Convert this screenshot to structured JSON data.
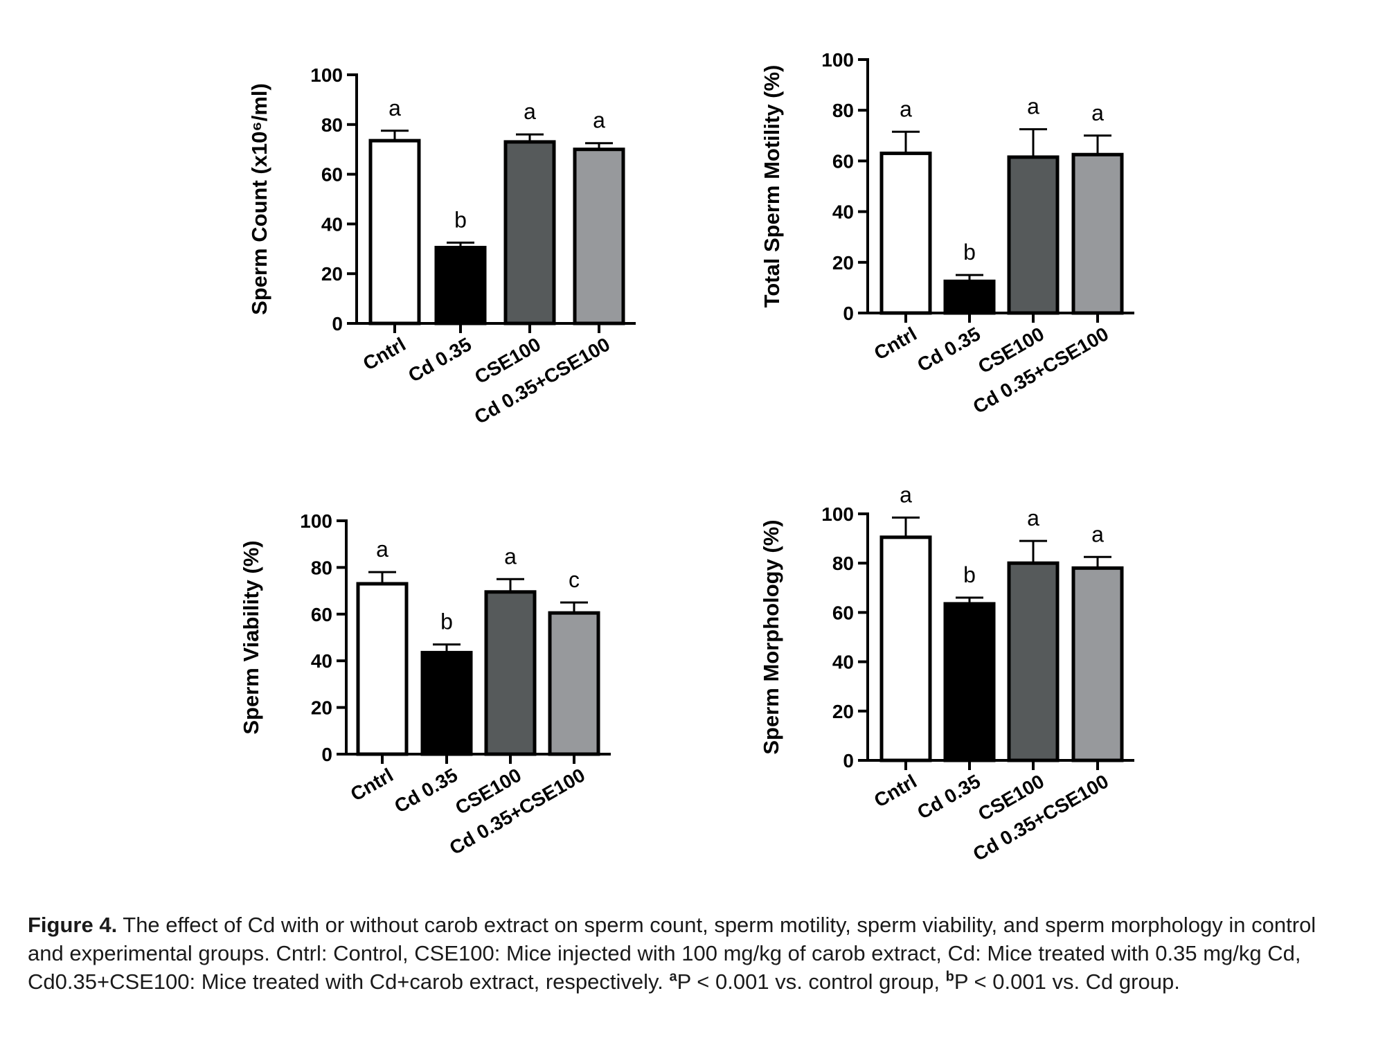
{
  "chart_data": [
    {
      "type": "bar",
      "ylabel": "Sperm Count (x10⁶/ml)",
      "categories": [
        "Cntrl",
        "Cd 0.35",
        "CSE100",
        "Cd 0.35+CSE100"
      ],
      "values": [
        73.5,
        30.5,
        73,
        70
      ],
      "errors": [
        4,
        2,
        3,
        2.5
      ],
      "significance": [
        "a",
        "b",
        "a",
        "a"
      ],
      "colors": [
        "#ffffff",
        "#000000",
        "#565a5b",
        "#97999c"
      ],
      "ylim": [
        0,
        100
      ],
      "yticks": [
        0,
        20,
        40,
        60,
        80,
        100
      ]
    },
    {
      "type": "bar",
      "ylabel": "Total Sperm Motility (%)",
      "categories": [
        "Cntrl",
        "Cd 0.35",
        "CSE100",
        "Cd 0.35+CSE100"
      ],
      "values": [
        63,
        12.5,
        61.5,
        62.5
      ],
      "errors": [
        8.5,
        2.5,
        11,
        7.5
      ],
      "significance": [
        "a",
        "b",
        "a",
        "a"
      ],
      "colors": [
        "#ffffff",
        "#000000",
        "#565a5b",
        "#97999c"
      ],
      "ylim": [
        0,
        100
      ],
      "yticks": [
        0,
        20,
        40,
        60,
        80,
        100
      ]
    },
    {
      "type": "bar",
      "ylabel": "Sperm Viability (%)",
      "categories": [
        "Cntrl",
        "Cd 0.35",
        "CSE100",
        "Cd 0.35+CSE100"
      ],
      "values": [
        73,
        43.5,
        69.5,
        60.5
      ],
      "errors": [
        5,
        3.5,
        5.5,
        4.5
      ],
      "significance": [
        "a",
        "b",
        "a",
        "c"
      ],
      "colors": [
        "#ffffff",
        "#000000",
        "#565a5b",
        "#97999c"
      ],
      "ylim": [
        0,
        100
      ],
      "yticks": [
        0,
        20,
        40,
        60,
        80,
        100
      ]
    },
    {
      "type": "bar",
      "ylabel": "Sperm Morphology (%)",
      "categories": [
        "Cntrl",
        "Cd 0.35",
        "CSE100",
        "Cd 0.35+CSE100"
      ],
      "values": [
        90.5,
        63.5,
        80,
        78
      ],
      "errors": [
        8,
        2.5,
        9,
        4.5
      ],
      "significance": [
        "a",
        "b",
        "a",
        "a"
      ],
      "colors": [
        "#ffffff",
        "#000000",
        "#565a5b",
        "#97999c"
      ],
      "ylim": [
        0,
        100
      ],
      "yticks": [
        0,
        20,
        40,
        60,
        80,
        100
      ]
    }
  ],
  "caption": {
    "label": "Figure 4.",
    "text_1": " The effect of Cd with or without carob extract on sperm count, sperm motility, sperm viability, and sperm morphology in control and experimental groups. Cntrl: Control, CSE100: Mice injected with 100 mg/kg of carob extract, Cd: Mice treated with 0.35 mg/kg Cd, Cd0.35+CSE100: Mice treated with Cd+carob extract, respectively. ",
    "sup_a": "a",
    "text_2": "P < 0.001 vs. control group, ",
    "sup_b": "b",
    "text_3": "P < 0.001 vs. Cd group."
  }
}
